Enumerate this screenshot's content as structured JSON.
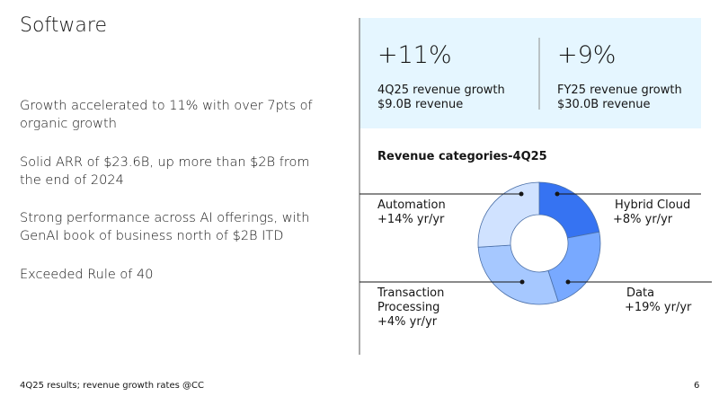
{
  "title": "Software",
  "bullets": [
    "Growth accelerated to 11% with over 7pts of organic growth",
    "Solid ARR of $23.6B, up more than $2B from the end of 2024",
    "Strong performance across AI offerings, with GenAI book of business north of $2B ITD",
    "Exceeded Rule of 40"
  ],
  "kpis": [
    {
      "value": "+11%",
      "label": "4Q25 revenue growth",
      "detail": "$9.0B revenue"
    },
    {
      "value": "+9%",
      "label": "FY25 revenue growth",
      "detail": "$30.0B revenue"
    }
  ],
  "chart_data": {
    "type": "donut",
    "title": "Revenue categories-4Q25",
    "categories": [
      "Hybrid Cloud",
      "Data",
      "Transaction Processing",
      "Automation"
    ],
    "growth_labels": [
      "+8% yr/yr",
      "+19% yr/yr",
      "+4% yr/yr",
      "+14% yr/yr"
    ],
    "values": [
      22,
      23,
      29,
      26
    ],
    "colors": [
      "#3673f2",
      "#78a9ff",
      "#a6c8ff",
      "#d0e2ff"
    ]
  },
  "footnote": "4Q25 results; revenue growth rates @CC",
  "page_number": "6"
}
